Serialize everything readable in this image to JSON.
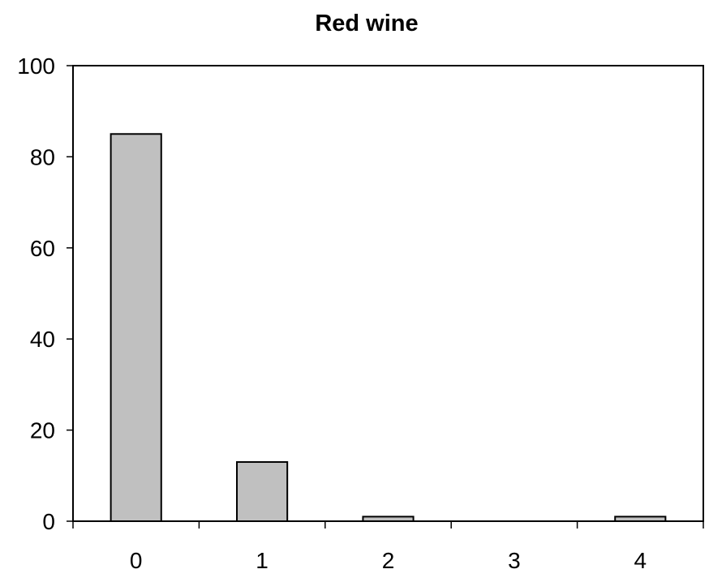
{
  "chart_data": {
    "type": "bar",
    "title": "Red wine",
    "xlabel": "",
    "ylabel": "",
    "categories": [
      "0",
      "1",
      "2",
      "3",
      "4"
    ],
    "values": [
      85,
      13,
      1,
      0,
      1
    ],
    "ylim": [
      0,
      100
    ],
    "yticks": [
      0,
      20,
      40,
      60,
      80,
      100
    ],
    "grid": false,
    "legend": "none",
    "bar_color": "#c0c0c0",
    "bar_edge_color": "#000000"
  }
}
